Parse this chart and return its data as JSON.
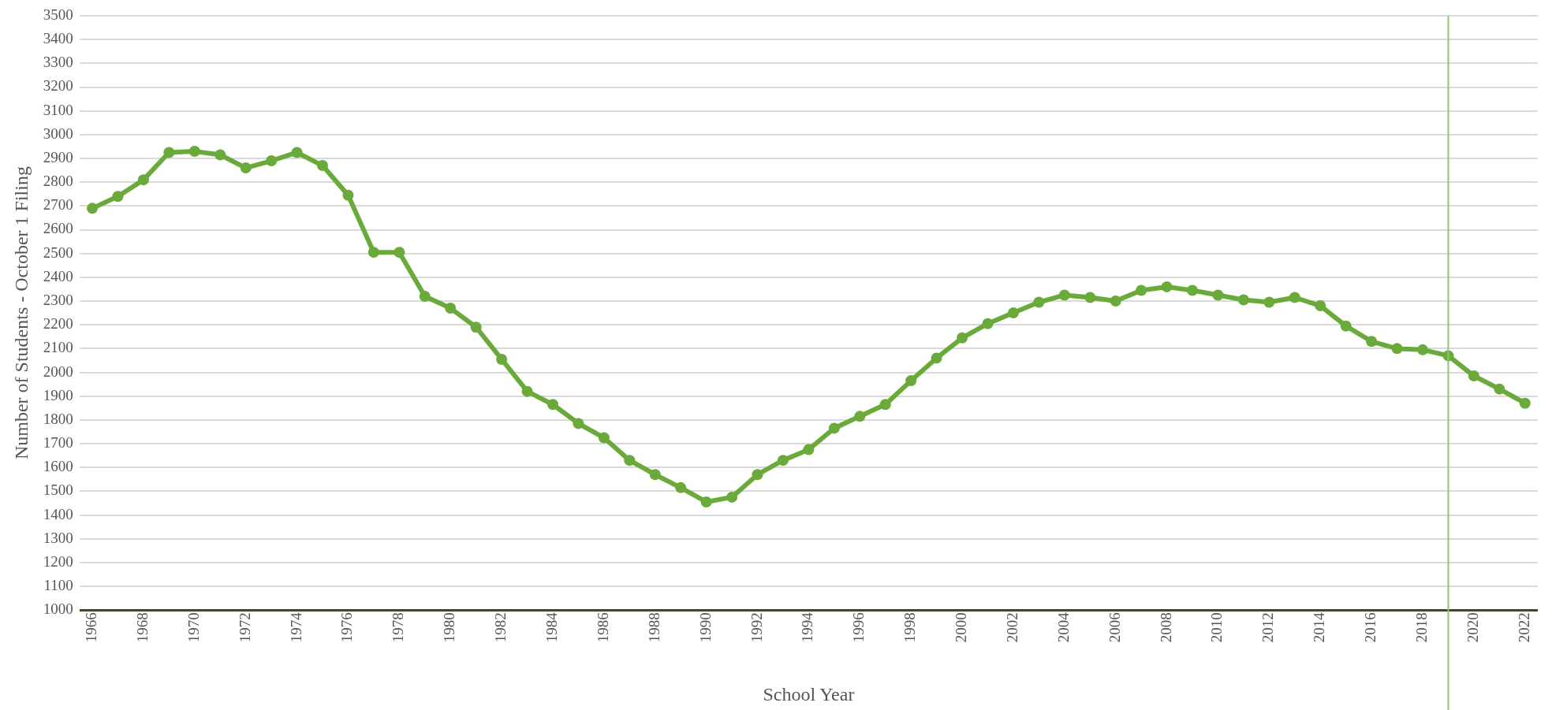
{
  "chart_data": {
    "type": "line",
    "xlabel": "School Year",
    "ylabel": "Number of Students - October 1 Filing",
    "x": [
      1966,
      1967,
      1968,
      1969,
      1970,
      1971,
      1972,
      1973,
      1974,
      1975,
      1976,
      1977,
      1978,
      1979,
      1980,
      1981,
      1982,
      1983,
      1984,
      1985,
      1986,
      1987,
      1988,
      1989,
      1990,
      1991,
      1992,
      1993,
      1994,
      1995,
      1996,
      1997,
      1998,
      1999,
      2000,
      2001,
      2002,
      2003,
      2004,
      2005,
      2006,
      2007,
      2008,
      2009,
      2010,
      2011,
      2012,
      2013,
      2014,
      2015,
      2016,
      2017,
      2018,
      2019,
      2020,
      2021,
      2022
    ],
    "series": [
      {
        "color": "#6aaa3a",
        "values": [
          2690,
          2740,
          2810,
          2925,
          2930,
          2915,
          2860,
          2890,
          2925,
          2870,
          2745,
          2505,
          2505,
          2320,
          2270,
          2190,
          2055,
          1920,
          1865,
          1785,
          1725,
          1630,
          1570,
          1515,
          1455,
          1475,
          1570,
          1630,
          1675,
          1765,
          1815,
          1865,
          1965,
          2060,
          2145,
          2205,
          2250,
          2295,
          2325,
          2315,
          2300,
          2345,
          2360,
          2345,
          2325,
          2305,
          2295,
          2315,
          2280,
          2195,
          2130,
          2100,
          2095,
          2070,
          1985,
          1930,
          1870
        ]
      }
    ],
    "xlim": [
      1965.5,
      2022.5
    ],
    "xticks": [
      1966,
      1968,
      1970,
      1972,
      1974,
      1976,
      1978,
      1980,
      1982,
      1984,
      1986,
      1988,
      1990,
      1992,
      1994,
      1996,
      1998,
      2000,
      2002,
      2004,
      2006,
      2008,
      2010,
      2012,
      2014,
      2016,
      2018,
      2020,
      2022
    ],
    "ylim": [
      1000,
      3500
    ],
    "yticks": [
      1000,
      1100,
      1200,
      1300,
      1400,
      1500,
      1600,
      1700,
      1800,
      1900,
      2000,
      2100,
      2200,
      2300,
      2400,
      2500,
      2600,
      2700,
      2800,
      2900,
      3000,
      3100,
      3200,
      3300,
      3400,
      3500
    ],
    "ref_lines": [
      {
        "axis": "x",
        "value": 2019,
        "color": "#8fc46a"
      }
    ],
    "grid": "y",
    "legend": false,
    "marker": "circle",
    "line_style": "solid"
  }
}
